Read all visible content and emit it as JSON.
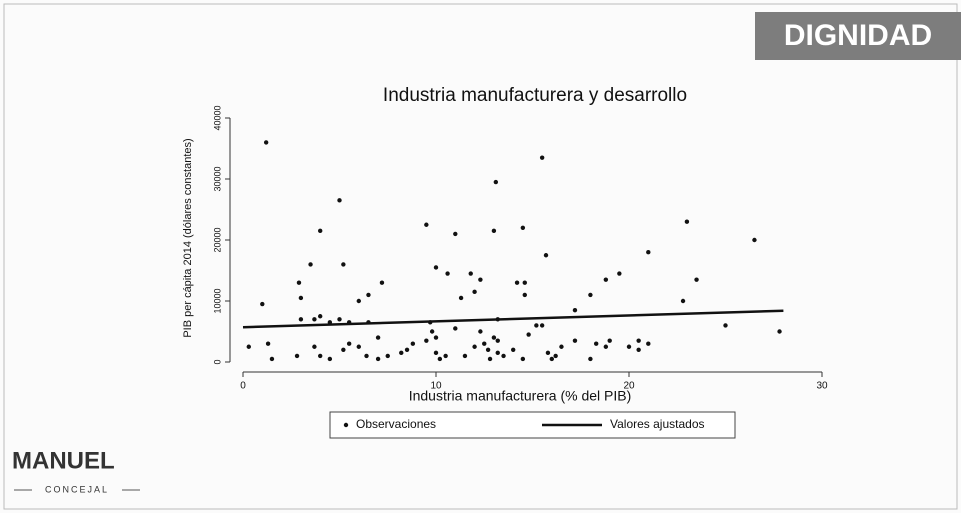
{
  "brand": {
    "tag": "DIGNIDAD",
    "name": "MANUEL",
    "role": "CONCEJAL"
  },
  "chart_data": {
    "type": "scatter",
    "title": "Industria manufacturera y desarrollo",
    "x_label": "Industria manufacturera (% del PIB)",
    "y_label": "PIB per cápita 2014 (dólares constantes)",
    "xlim": [
      0,
      30
    ],
    "xticks": [
      0,
      10,
      20,
      30
    ],
    "ylim": [
      0,
      40000
    ],
    "yticks": [
      0,
      10000,
      20000,
      30000,
      40000
    ],
    "legend": "bottom",
    "series": [
      {
        "name": "Observaciones",
        "kind": "points",
        "color": "#111111",
        "x": [
          1.2,
          15.5,
          13.1,
          5.0,
          4.0,
          9.5,
          11.0,
          13.0,
          14.5,
          23.0,
          26.5,
          2.9,
          3.5,
          5.2,
          7.2,
          10.0,
          10.6,
          11.8,
          15.7,
          21.0,
          23.5,
          19.5,
          18.8,
          1.0,
          3.0,
          6.0,
          6.5,
          11.3,
          12.0,
          12.3,
          14.2,
          14.6,
          14.6,
          18.0,
          17.2,
          22.8,
          25.0,
          27.8,
          0.3,
          1.3,
          1.5,
          2.8,
          3.0,
          3.7,
          4.0,
          4.5,
          5.0,
          5.5,
          3.7,
          4.0,
          4.5,
          5.2,
          5.5,
          6.0,
          6.4,
          7.0,
          7.5,
          8.2,
          8.5,
          9.5,
          9.8,
          10.0,
          10.2,
          10.0,
          9.7,
          10.5,
          11.0,
          11.5,
          12.0,
          12.3,
          12.5,
          12.7,
          13.0,
          13.2,
          13.2,
          13.5,
          13.2,
          14.0,
          14.5,
          14.8,
          15.2,
          15.5,
          15.8,
          16.2,
          16.0,
          16.5,
          17.2,
          18.0,
          18.3,
          18.8,
          19.0,
          20.0,
          20.5,
          20.5,
          21.0,
          8.8,
          7.0,
          12.8,
          6.5
        ],
        "values": [
          36000,
          33500,
          29500,
          26500,
          21500,
          22500,
          21000,
          21500,
          22000,
          23000,
          20000,
          13000,
          16000,
          16000,
          13000,
          15500,
          14500,
          14500,
          17500,
          18000,
          13500,
          14500,
          13500,
          9500,
          10500,
          10000,
          11000,
          10500,
          11500,
          13500,
          13000,
          13000,
          11000,
          11000,
          8500,
          10000,
          6000,
          5000,
          2500,
          3000,
          500,
          1000,
          7000,
          7000,
          7500,
          6500,
          7000,
          6500,
          2500,
          1000,
          500,
          2000,
          3000,
          2500,
          1000,
          500,
          1000,
          1500,
          2000,
          3500,
          5000,
          4000,
          500,
          1500,
          6500,
          1000,
          5500,
          1000,
          2500,
          5000,
          3000,
          2000,
          4000,
          1500,
          3500,
          1000,
          7000,
          2000,
          500,
          4500,
          6000,
          6000,
          1500,
          1000,
          500,
          2500,
          3500,
          500,
          3000,
          2500,
          3500,
          2500,
          3500,
          2000,
          3000,
          3000,
          4000,
          500,
          6500
        ]
      },
      {
        "name": "Valores ajustados",
        "kind": "line",
        "color": "#111111",
        "x": [
          0,
          28
        ],
        "values": [
          5700,
          8400
        ]
      }
    ]
  }
}
